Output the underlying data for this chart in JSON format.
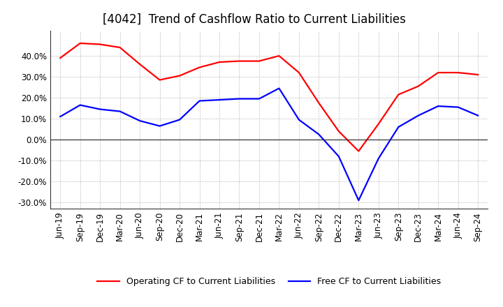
{
  "title": "[4042]  Trend of Cashflow Ratio to Current Liabilities",
  "x_labels": [
    "Jun-19",
    "Sep-19",
    "Dec-19",
    "Mar-20",
    "Jun-20",
    "Sep-20",
    "Dec-20",
    "Mar-21",
    "Jun-21",
    "Sep-21",
    "Dec-21",
    "Mar-22",
    "Jun-22",
    "Sep-22",
    "Dec-22",
    "Mar-23",
    "Jun-23",
    "Sep-23",
    "Dec-23",
    "Mar-24",
    "Jun-24",
    "Sep-24"
  ],
  "operating_cf": [
    0.39,
    0.46,
    0.455,
    0.44,
    0.36,
    0.285,
    0.305,
    0.345,
    0.37,
    0.375,
    0.375,
    0.4,
    0.32,
    0.175,
    0.04,
    -0.055,
    0.075,
    0.215,
    0.255,
    0.32,
    0.32,
    0.31
  ],
  "free_cf": [
    0.11,
    0.165,
    0.145,
    0.135,
    0.09,
    0.065,
    0.095,
    0.185,
    0.19,
    0.195,
    0.195,
    0.245,
    0.095,
    0.025,
    -0.08,
    -0.29,
    -0.09,
    0.06,
    0.115,
    0.16,
    0.155,
    0.115
  ],
  "ylim": [
    -0.33,
    0.52
  ],
  "yticks": [
    -0.3,
    -0.2,
    -0.1,
    0.0,
    0.1,
    0.2,
    0.3,
    0.4
  ],
  "operating_color": "#ff0000",
  "free_color": "#0000ff",
  "grid_color": "#aaaaaa",
  "bg_color": "#ffffff",
  "legend_operating": "Operating CF to Current Liabilities",
  "legend_free": "Free CF to Current Liabilities",
  "title_fontsize": 12,
  "tick_fontsize": 8.5,
  "legend_fontsize": 9
}
